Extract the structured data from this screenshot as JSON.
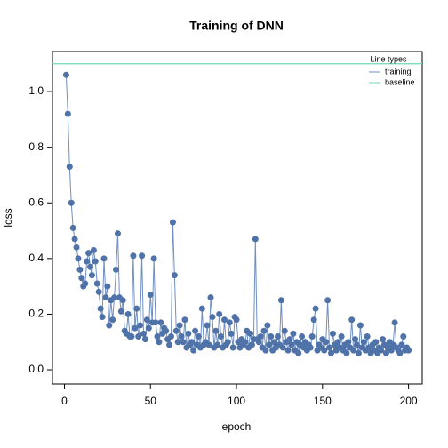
{
  "chart_data": {
    "type": "line",
    "title": "Training of DNN",
    "xlabel": "epoch",
    "ylabel": "loss",
    "x": [
      1,
      2,
      3,
      4,
      5,
      6,
      7,
      8,
      9,
      10,
      11,
      12,
      13,
      14,
      15,
      16,
      17,
      18,
      19,
      20,
      21,
      22,
      23,
      24,
      25,
      26,
      27,
      28,
      29,
      30,
      31,
      32,
      33,
      34,
      35,
      36,
      37,
      38,
      39,
      40,
      41,
      42,
      43,
      44,
      45,
      46,
      47,
      48,
      49,
      50,
      51,
      52,
      53,
      54,
      55,
      56,
      57,
      58,
      59,
      60,
      61,
      62,
      63,
      64,
      65,
      66,
      67,
      68,
      69,
      70,
      71,
      72,
      73,
      74,
      75,
      76,
      77,
      78,
      79,
      80,
      81,
      82,
      83,
      84,
      85,
      86,
      87,
      88,
      89,
      90,
      91,
      92,
      93,
      94,
      95,
      96,
      97,
      98,
      99,
      100,
      101,
      102,
      103,
      104,
      105,
      106,
      107,
      108,
      109,
      110,
      111,
      112,
      113,
      114,
      115,
      116,
      117,
      118,
      119,
      120,
      121,
      122,
      123,
      124,
      125,
      126,
      127,
      128,
      129,
      130,
      131,
      132,
      133,
      134,
      135,
      136,
      137,
      138,
      139,
      140,
      141,
      142,
      143,
      144,
      145,
      146,
      147,
      148,
      149,
      150,
      151,
      152,
      153,
      154,
      155,
      156,
      157,
      158,
      159,
      160,
      161,
      162,
      163,
      164,
      165,
      166,
      167,
      168,
      169,
      170,
      171,
      172,
      173,
      174,
      175,
      176,
      177,
      178,
      179,
      180,
      181,
      182,
      183,
      184,
      185,
      186,
      187,
      188,
      189,
      190,
      191,
      192,
      193,
      194,
      195,
      196,
      197,
      198,
      199,
      200
    ],
    "series": [
      {
        "name": "training",
        "color": "#4f72a8",
        "line_color": "#6f8fc2",
        "values": [
          1.06,
          0.92,
          0.73,
          0.6,
          0.51,
          0.47,
          0.44,
          0.4,
          0.36,
          0.33,
          0.3,
          0.31,
          0.39,
          0.42,
          0.37,
          0.34,
          0.43,
          0.39,
          0.31,
          0.28,
          0.22,
          0.19,
          0.4,
          0.26,
          0.3,
          0.16,
          0.25,
          0.18,
          0.26,
          0.36,
          0.49,
          0.26,
          0.21,
          0.25,
          0.14,
          0.13,
          0.2,
          0.12,
          0.12,
          0.41,
          0.15,
          0.22,
          0.12,
          0.16,
          0.41,
          0.13,
          0.11,
          0.18,
          0.15,
          0.27,
          0.17,
          0.4,
          0.17,
          0.12,
          0.1,
          0.17,
          0.13,
          0.15,
          0.14,
          0.11,
          0.09,
          0.12,
          0.53,
          0.34,
          0.14,
          0.1,
          0.16,
          0.12,
          0.1,
          0.18,
          0.08,
          0.13,
          0.09,
          0.1,
          0.07,
          0.14,
          0.09,
          0.12,
          0.08,
          0.22,
          0.09,
          0.1,
          0.16,
          0.09,
          0.26,
          0.19,
          0.08,
          0.14,
          0.09,
          0.2,
          0.12,
          0.08,
          0.18,
          0.09,
          0.1,
          0.17,
          0.13,
          0.08,
          0.19,
          0.18,
          0.1,
          0.08,
          0.11,
          0.09,
          0.1,
          0.14,
          0.08,
          0.13,
          0.09,
          0.11,
          0.47,
          0.11,
          0.1,
          0.12,
          0.08,
          0.14,
          0.07,
          0.16,
          0.09,
          0.12,
          0.07,
          0.1,
          0.08,
          0.12,
          0.09,
          0.25,
          0.08,
          0.14,
          0.1,
          0.07,
          0.11,
          0.09,
          0.13,
          0.07,
          0.1,
          0.06,
          0.09,
          0.12,
          0.08,
          0.1,
          0.07,
          0.09,
          0.08,
          0.12,
          0.18,
          0.22,
          0.07,
          0.09,
          0.08,
          0.11,
          0.07,
          0.1,
          0.25,
          0.08,
          0.06,
          0.13,
          0.09,
          0.07,
          0.1,
          0.08,
          0.12,
          0.07,
          0.09,
          0.06,
          0.1,
          0.08,
          0.18,
          0.07,
          0.11,
          0.09,
          0.06,
          0.16,
          0.08,
          0.1,
          0.07,
          0.12,
          0.08,
          0.06,
          0.09,
          0.07,
          0.1,
          0.06,
          0.08,
          0.07,
          0.11,
          0.09,
          0.06,
          0.08,
          0.1,
          0.07,
          0.09,
          0.17,
          0.08,
          0.07,
          0.06,
          0.09,
          0.12,
          0.07,
          0.08,
          0.07
        ]
      }
    ],
    "baseline": {
      "name": "baseline",
      "value": 1.1,
      "color": "#6fd9b2"
    },
    "legend": {
      "title": "Line types",
      "position": "topright"
    },
    "xlim": [
      -6.96,
      207.96
    ],
    "ylim": [
      -0.051,
      1.144
    ],
    "xticks": [
      0,
      50,
      100,
      150,
      200
    ],
    "yticks": [
      {
        "value": 0,
        "label": "0.0"
      },
      0.2,
      0.4,
      0.6,
      0.8,
      {
        "value": 1,
        "label": "1.0"
      }
    ]
  }
}
